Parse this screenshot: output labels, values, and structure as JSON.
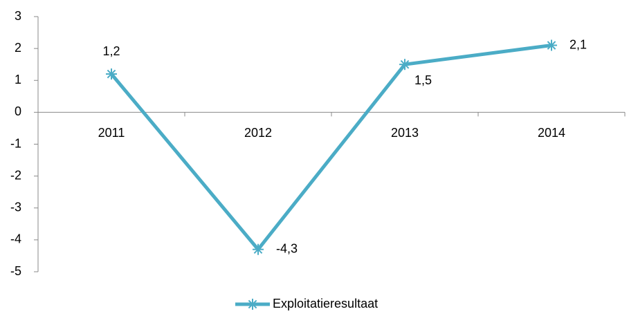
{
  "chart_data": {
    "type": "line",
    "categories": [
      "2011",
      "2012",
      "2013",
      "2014"
    ],
    "series": [
      {
        "name": "Exploitatieresultaat",
        "color": "#4bacc6",
        "values": [
          1.2,
          -4.3,
          1.5,
          2.1
        ],
        "value_labels": [
          "1,2",
          "-4,3",
          "1,5",
          "2,1"
        ]
      }
    ],
    "ylim": [
      -5,
      3
    ],
    "yticks": [
      3,
      2,
      1,
      0,
      -1,
      -2,
      -3,
      -4,
      -5
    ],
    "legend": "bottom"
  }
}
